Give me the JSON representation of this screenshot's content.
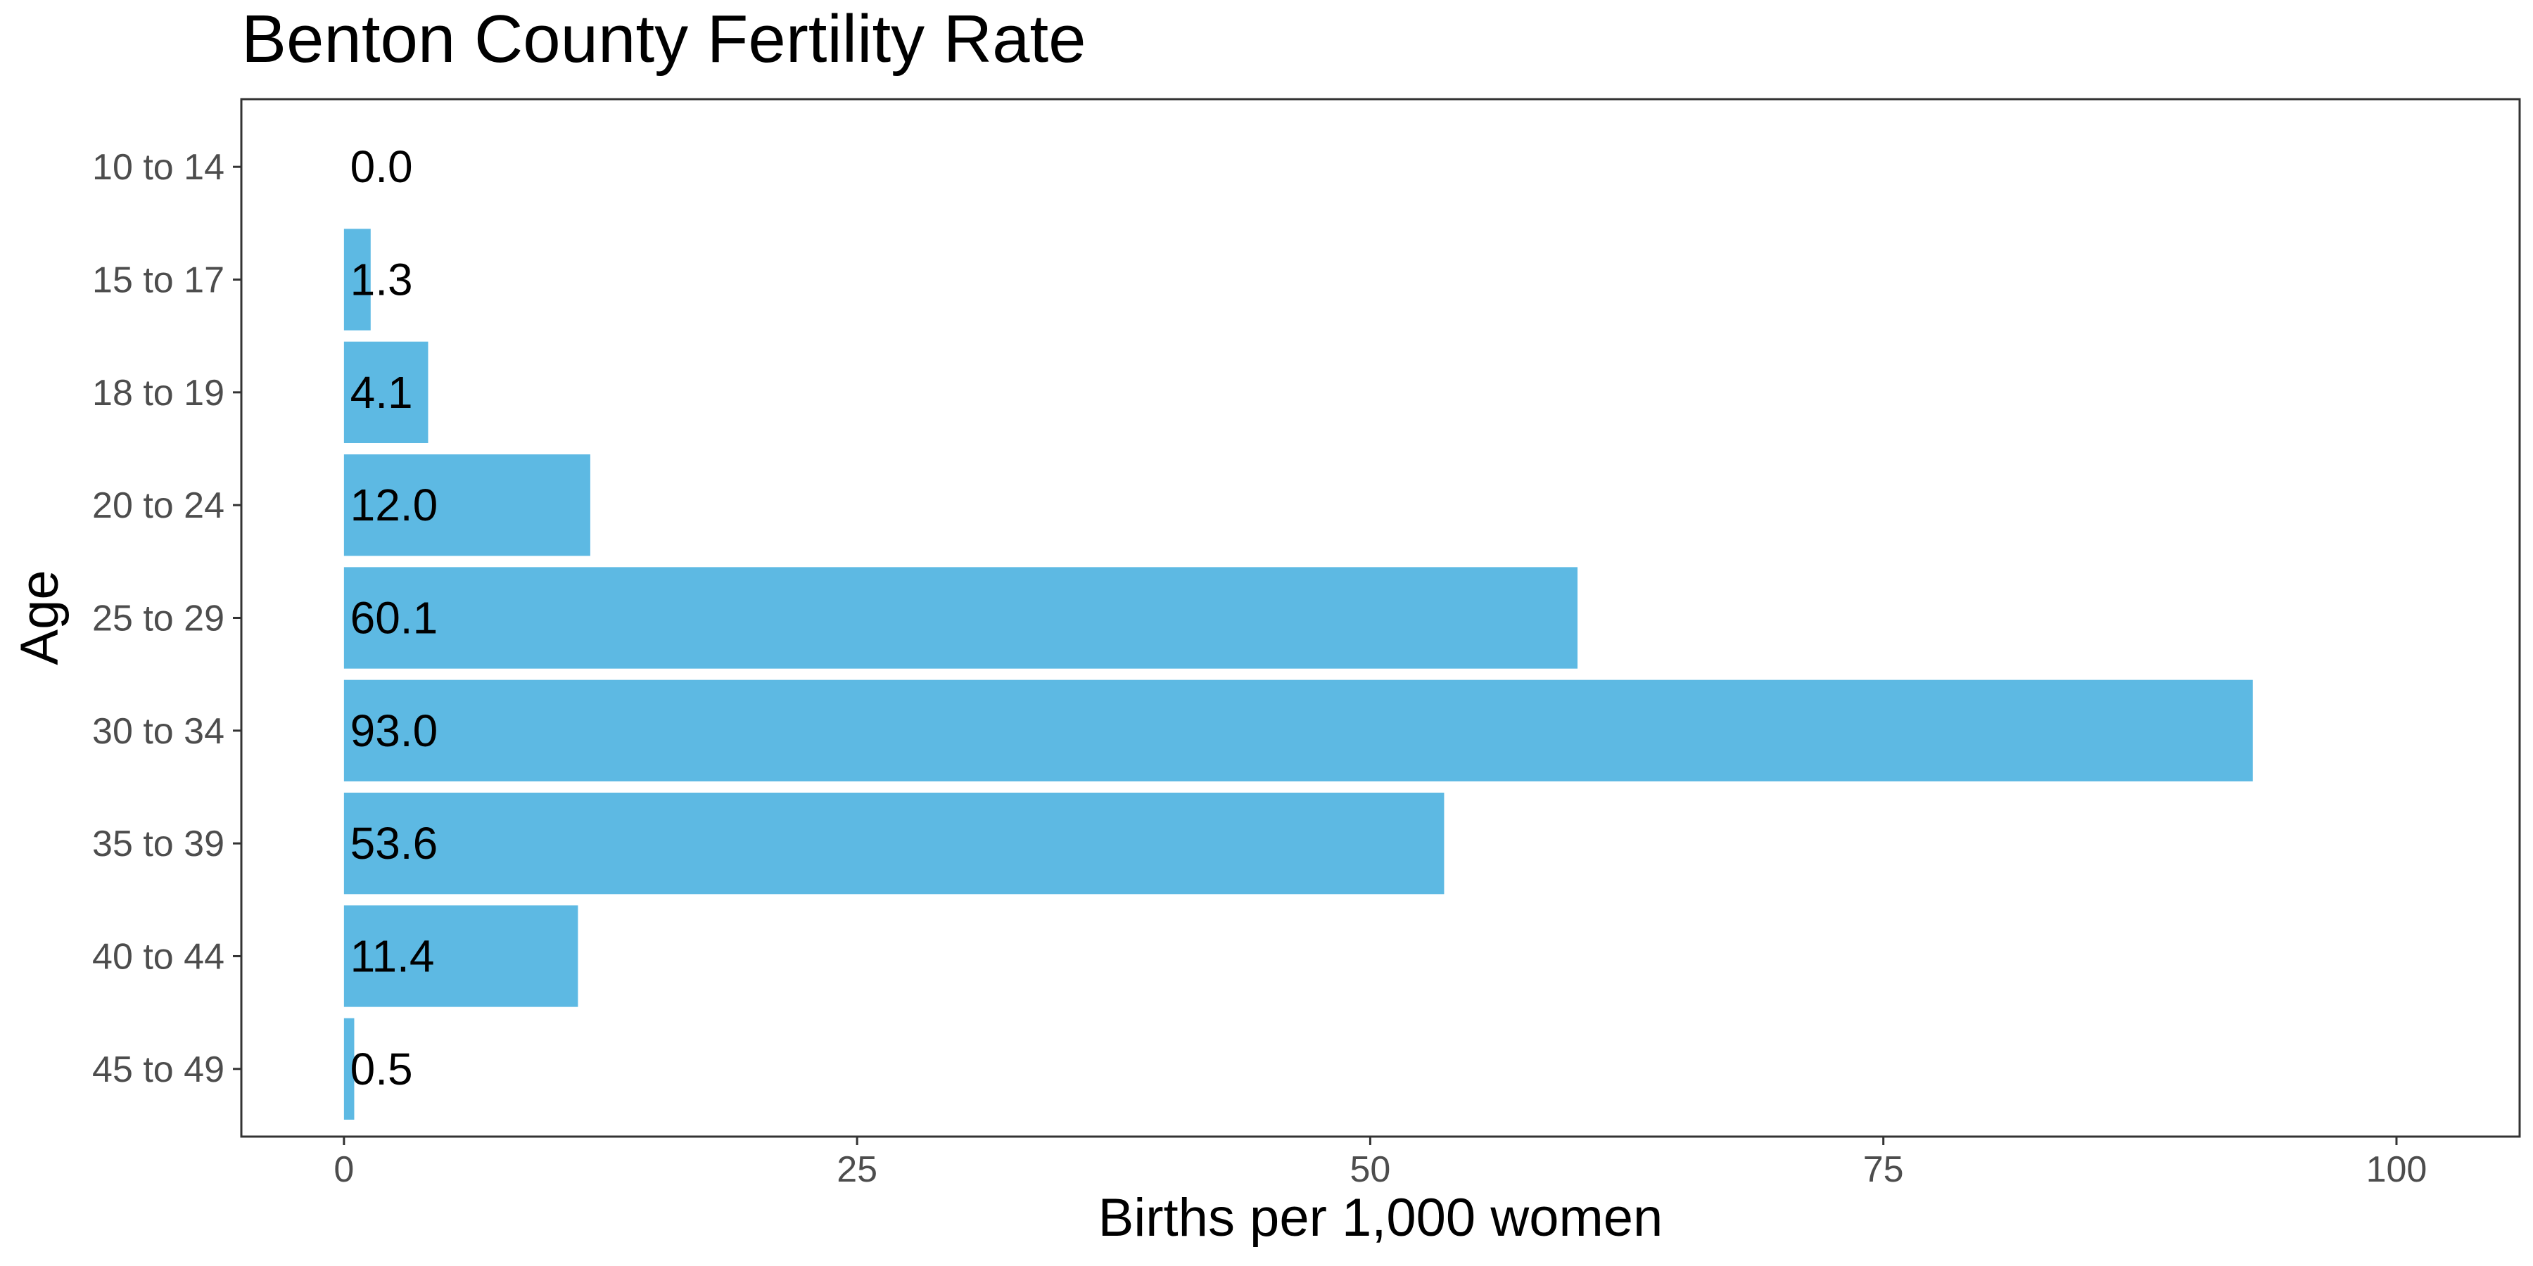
{
  "chart_data": {
    "type": "bar",
    "orientation": "horizontal",
    "title": "Benton County Fertility Rate",
    "xlabel": "Births per 1,000 women",
    "ylabel": "Age",
    "categories": [
      "10 to 14",
      "15 to 17",
      "18 to 19",
      "20 to 24",
      "25 to 29",
      "30 to 34",
      "35 to 39",
      "40 to 44",
      "45 to 49"
    ],
    "values": [
      0.0,
      1.3,
      4.1,
      12.0,
      60.1,
      93.0,
      53.6,
      11.4,
      0.5
    ],
    "data_labels": [
      "0.0",
      "1.3",
      "4.1",
      "12.0",
      "60.1",
      "93.0",
      "53.6",
      "11.4",
      "0.5"
    ],
    "x_ticks": [
      0,
      25,
      50,
      75,
      100
    ],
    "x_tick_labels": [
      "0",
      "25",
      "50",
      "75",
      "100"
    ],
    "xlim": [
      -5,
      106
    ],
    "bar_color": "#5DB9E3",
    "grid": false,
    "legend": "none"
  }
}
